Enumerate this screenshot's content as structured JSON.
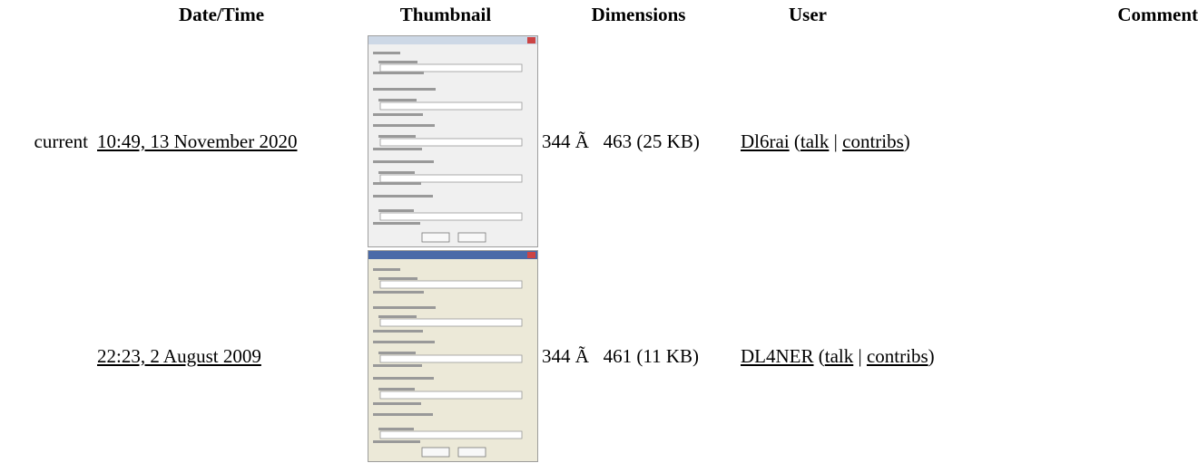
{
  "table": {
    "headers": [
      "Date/Time",
      "Thumbnail",
      "Dimensions",
      "User",
      "Comment"
    ],
    "rows": [
      {
        "status": "current",
        "datetime": "10:49, 13 November 2020",
        "dimensions": "344 Ã   463 (25 KB)",
        "user": {
          "name": "Dl6rai",
          "open": "(",
          "talk": "talk",
          "sep": "|",
          "contribs": "contribs",
          "close": ")"
        },
        "comment": ""
      },
      {
        "status": "",
        "datetime": "22:23, 2 August 2009",
        "dimensions": "344 Ã   461 (11 KB)",
        "user": {
          "name": "DL4NER",
          "open": "(",
          "talk": "talk",
          "sep": "|",
          "contribs": "contribs",
          "close": ")"
        },
        "comment": ""
      }
    ]
  }
}
